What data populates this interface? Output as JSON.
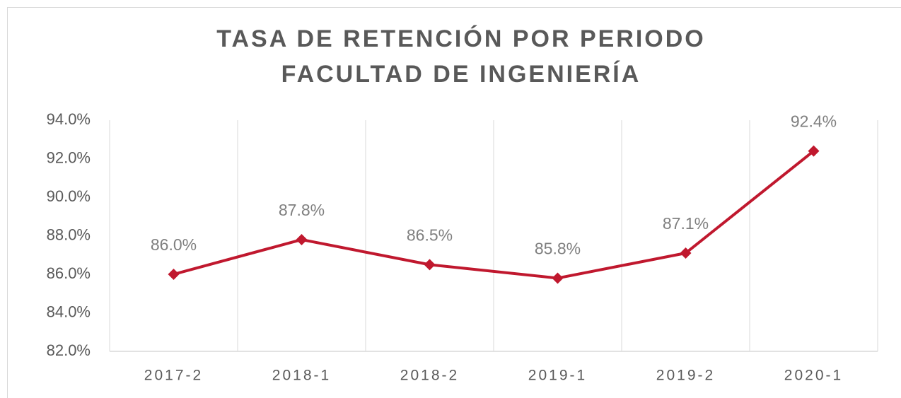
{
  "chart_data": {
    "type": "line",
    "title": "TASA DE RETENCIÓN POR PERIODO",
    "subtitle": "FACULTAD DE INGENIERÍA",
    "categories": [
      "2017-2",
      "2018-1",
      "2018-2",
      "2019-1",
      "2019-2",
      "2020-1"
    ],
    "values": [
      86.0,
      87.8,
      86.5,
      85.8,
      87.1,
      92.4
    ],
    "value_labels": [
      "86.0%",
      "87.8%",
      "86.5%",
      "85.8%",
      "87.1%",
      "92.4%"
    ],
    "color": "#c0182e",
    "ylim": [
      82,
      94
    ],
    "yticks": [
      {
        "value": 82,
        "label": "82.0%"
      },
      {
        "value": 84,
        "label": "84.0%"
      },
      {
        "value": 86,
        "label": "86.0%"
      },
      {
        "value": 88,
        "label": "88.0%"
      },
      {
        "value": 90,
        "label": "90.0%"
      },
      {
        "value": 92,
        "label": "92.0%"
      },
      {
        "value": 94,
        "label": "94.0%"
      }
    ]
  }
}
